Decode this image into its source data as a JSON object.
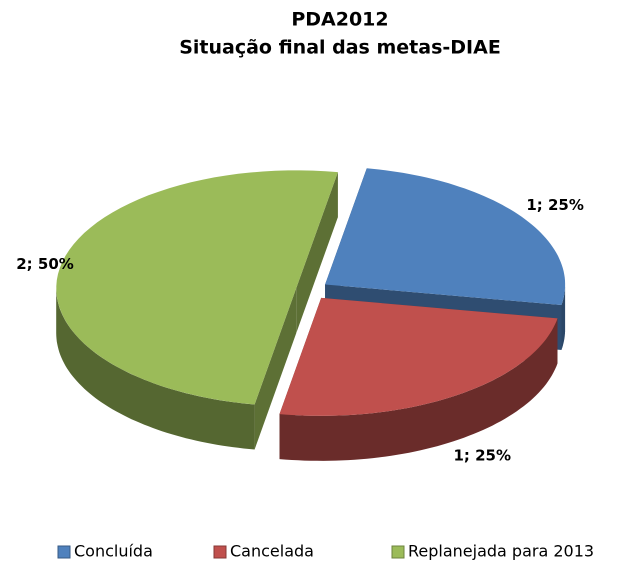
{
  "chart_data": {
    "type": "pie",
    "title": "PDA2012",
    "subtitle": "Situação final das metas-DIAE",
    "categories": [
      "Concluída",
      "Cancelada",
      "Replanejada para 2013"
    ],
    "values": [
      1,
      1,
      2
    ],
    "value_labels": [
      "1; 25%",
      "1; 25%",
      "2; 50%"
    ],
    "colors": [
      "#4f81bd",
      "#c0504d",
      "#9bbb59"
    ],
    "legend": "bottom"
  }
}
